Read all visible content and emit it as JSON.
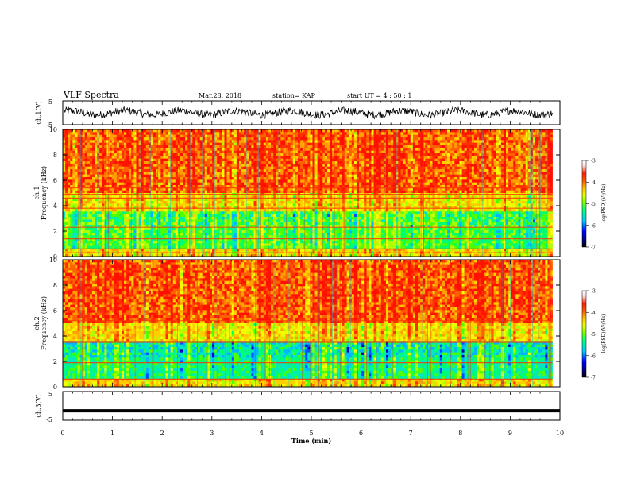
{
  "header": {
    "title": "VLF Spectra",
    "date": "Mar.28, 2018",
    "station": "station= KAP",
    "start": "start  UT =   4 : 50 : 1"
  },
  "colors": {
    "scale": [
      "#000000",
      "#000080",
      "#0000ff",
      "#00c8ff",
      "#00ff80",
      "#80ff00",
      "#e8ff00",
      "#ffc000",
      "#ff6000",
      "#ff2000",
      "#ffe0e0",
      "#ffffff"
    ],
    "trace": "#000000"
  },
  "chart_data": [
    {
      "type": "line",
      "ylabel": "ch.1(V)",
      "ylim": [
        -5,
        5
      ],
      "yticks": [
        "5",
        "-5"
      ],
      "xlim": [
        0,
        10
      ],
      "description_series": "noisy waveform oscillating roughly between -2 and 2 V"
    },
    {
      "type": "heatmap",
      "ylabel_channel": "ch.1",
      "ylabel": "Frequency (kHz)",
      "ylim": [
        0,
        10
      ],
      "yticks": [
        "0",
        "2",
        "4",
        "6",
        "8",
        "10"
      ],
      "xlim": [
        0,
        10
      ],
      "colorbar": {
        "label": "log(PSD)(V²/Hz)",
        "range": [
          -7,
          -3
        ],
        "ticks": [
          "-3",
          "-4",
          "-5",
          "-6",
          "-7"
        ]
      }
    },
    {
      "type": "heatmap",
      "ylabel_channel": "ch.2",
      "ylabel": "Frequency (kHz)",
      "ylim": [
        0,
        10
      ],
      "yticks": [
        "0",
        "2",
        "4",
        "6",
        "8",
        "10"
      ],
      "xlim": [
        0,
        10
      ],
      "colorbar": {
        "label": "log(PSD)(V²/Hz)",
        "range": [
          -7,
          -3
        ],
        "ticks": [
          "-3",
          "-4",
          "-5",
          "-6",
          "-7"
        ]
      }
    },
    {
      "type": "line",
      "ylabel": "ch.3(V)",
      "ylim": [
        -5,
        5
      ],
      "yticks": [
        "5",
        "-5"
      ],
      "xlim": [
        0,
        10
      ],
      "series": [
        {
          "values": [
            -1.7,
            -1.7
          ]
        }
      ]
    }
  ],
  "xaxis": {
    "label": "Time (min)",
    "ticks": [
      "0",
      "1",
      "2",
      "3",
      "4",
      "5",
      "6",
      "7",
      "8",
      "9",
      "10"
    ]
  }
}
